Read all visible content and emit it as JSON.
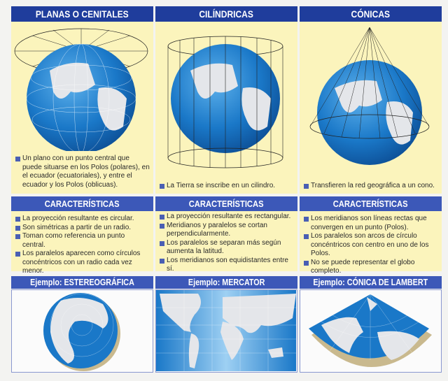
{
  "columns": [
    {
      "title": "PLANAS O CENITALES",
      "description": "Un plano con un punto central que puede situarse en los Polos (polares), en el ecuador (ecuatoriales), y entre el ecuador y los Polos (oblicuas).",
      "characteristics_title": "CARACTERÍSTICAS",
      "characteristics": [
        "La proyección resultante es circular.",
        "Son simétricas a partir de un radio.",
        "Toman como referencia un punto central.",
        "Los paralelos aparecen como círculos concéntricos con un radio cada vez menor."
      ],
      "example": "Ejemplo: ESTEREOGRÁFICA"
    },
    {
      "title": "CILÍNDRICAS",
      "description": "La Tierra se inscribe en un cilindro.",
      "characteristics_title": "CARACTERÍSTICAS",
      "characteristics": [
        "La proyección resultante es rectangular.",
        "Meridianos y paralelos se cortan perpendicularmente.",
        "Los paralelos se separan más según aumenta la latitud.",
        "Los meridianos son equidistantes entre sí."
      ],
      "example": "Ejemplo: MERCATOR"
    },
    {
      "title": "CÓNICAS",
      "description": "Transfieren la red geográfica a un cono.",
      "characteristics_title": "CARACTERÍSTICAS",
      "characteristics": [
        "Los meridianos son líneas rectas que convergen en un punto (Polos).",
        "Los paralelos son arcos de círculo concéntricos con centro en uno de los Polos.",
        "No se puede representar el globo completo."
      ],
      "example": "Ejemplo: CÓNICA DE LAMBERT"
    }
  ],
  "colors": {
    "header": "#1f3d9c",
    "subheader": "#3c58b8",
    "panel": "#fbf4bc",
    "ocean": "#1a78c8",
    "land": "#e4e6ea"
  }
}
